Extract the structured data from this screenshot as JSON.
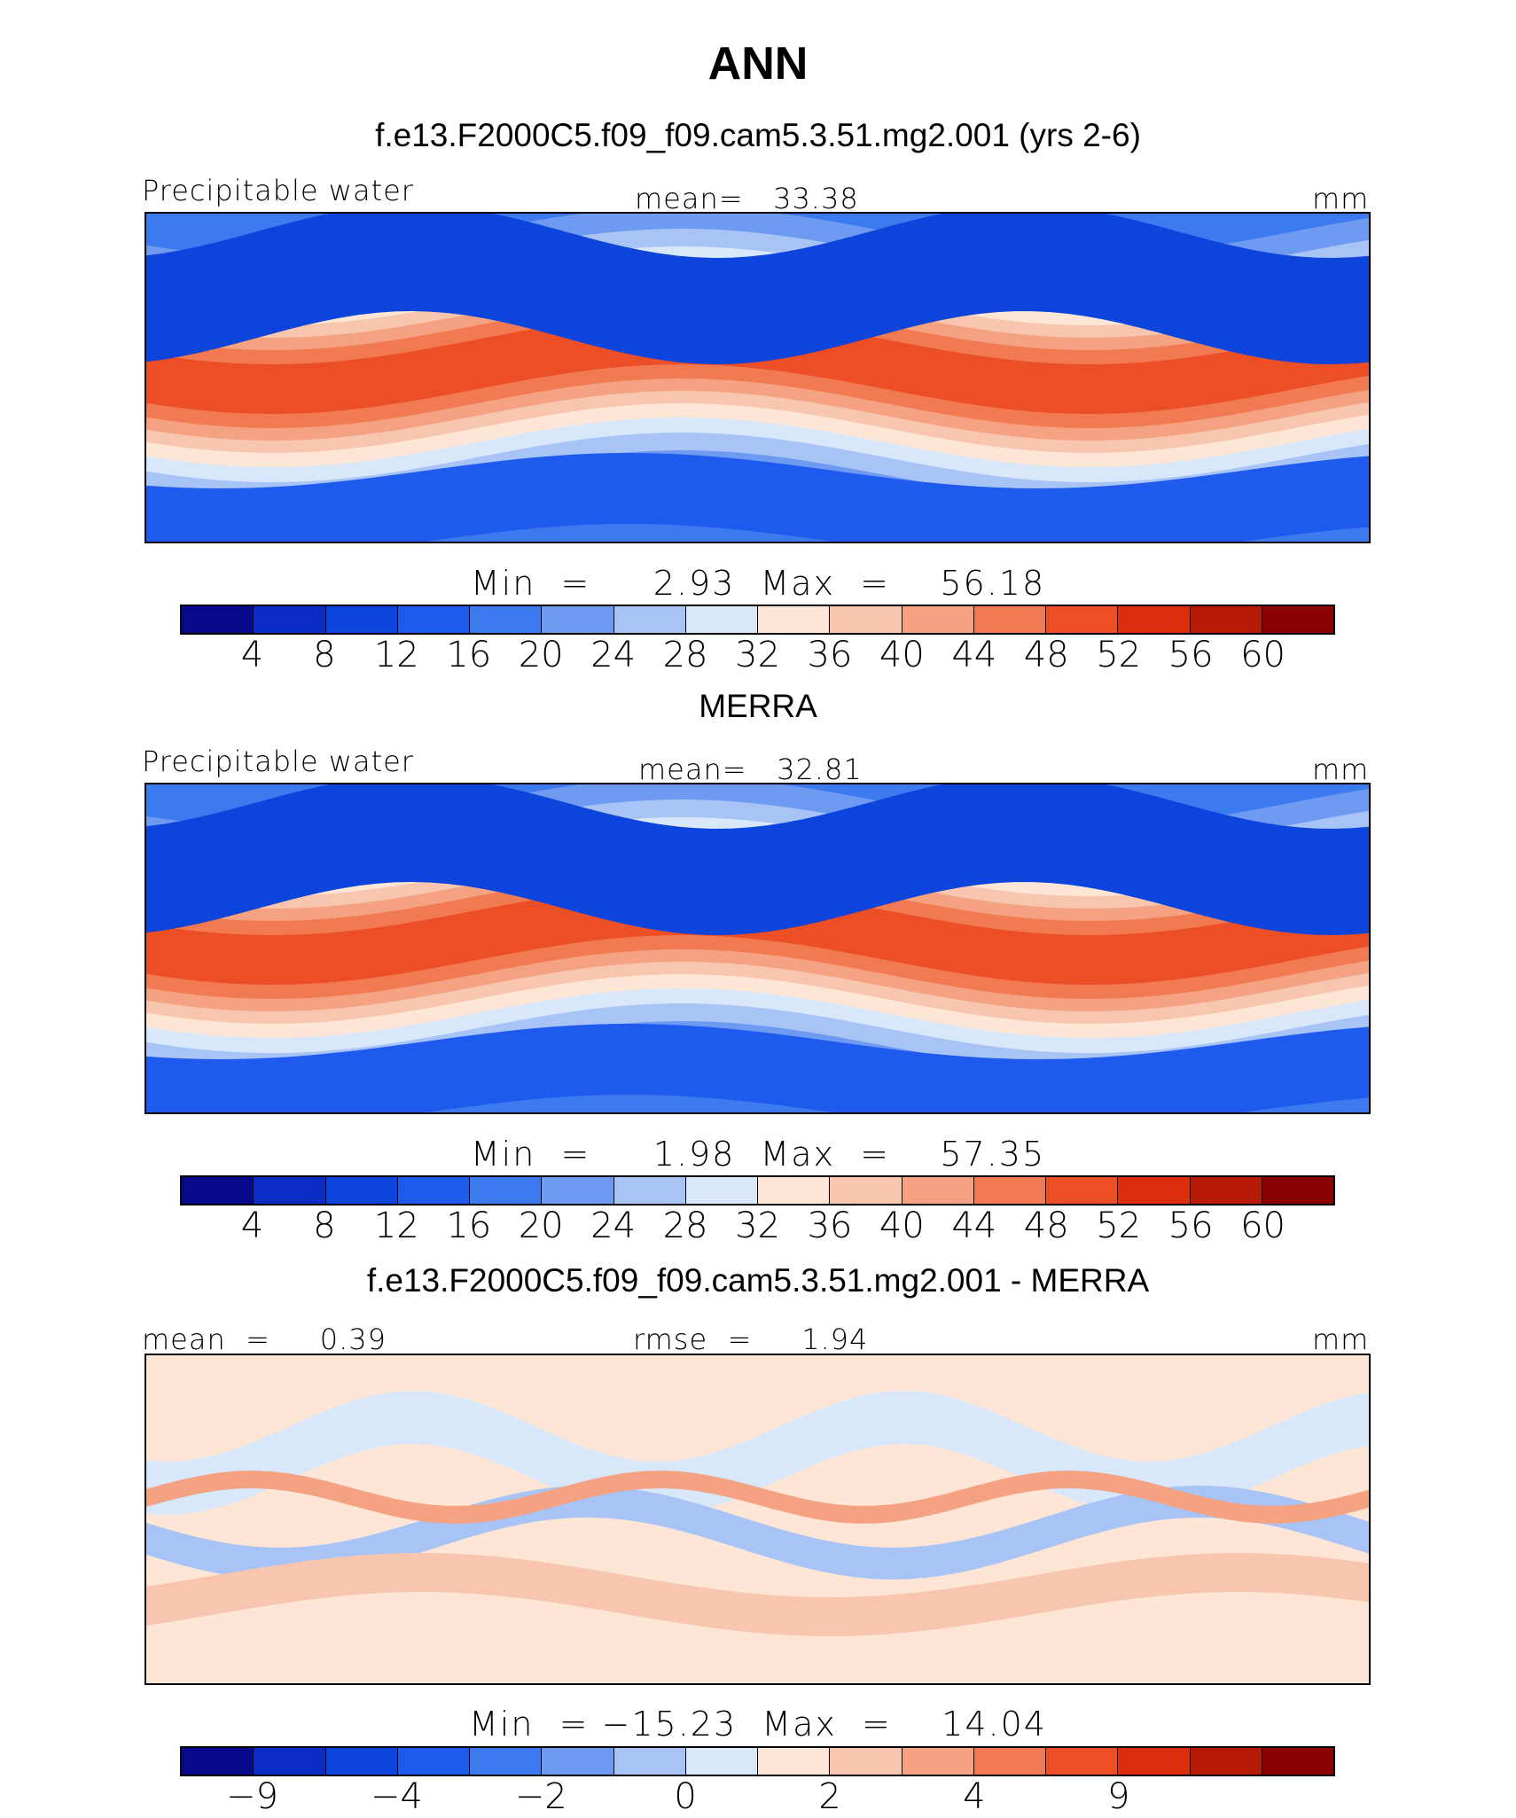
{
  "header": {
    "title": "ANN"
  },
  "colors": {
    "abs_scale": [
      "#08088c",
      "#0a2cc4",
      "#0c44dc",
      "#1e5aee",
      "#3c7aef",
      "#6e9af2",
      "#a8c4f6",
      "#d8e8fa",
      "#fde6d6",
      "#f8c6ae",
      "#f4a282",
      "#f27a52",
      "#ec4e26",
      "#dc2e0c",
      "#b81a08",
      "#8a0404"
    ],
    "diff_scale": [
      "#08088c",
      "#0a2cc4",
      "#0c44dc",
      "#1e5aee",
      "#3c7aef",
      "#6e9af2",
      "#a8c4f6",
      "#d8e8fa",
      "#fde6d6",
      "#f8c6ae",
      "#f4a282",
      "#f27a52",
      "#ec4e26",
      "#dc2e0c",
      "#b81a08",
      "#8a0404"
    ]
  },
  "chart_data": [
    {
      "type": "heatmap",
      "title": "f.e13.F2000C5.f09_f09.cam5.3.51.mg2.001 (yrs 2-6)",
      "left_label": "Precipitable water",
      "center_label": "mean=   33.38",
      "units": "mm",
      "mean": 33.38,
      "min": 2.93,
      "max": 56.18,
      "stats_text": "Min  =     2.93  Max  =    56.18",
      "colorbar_ticks": [
        "4",
        "8",
        "12",
        "16",
        "20",
        "24",
        "28",
        "32",
        "36",
        "40",
        "44",
        "48",
        "52",
        "56",
        "60"
      ],
      "scale": "abs"
    },
    {
      "type": "heatmap",
      "title": "MERRA",
      "left_label": "Precipitable water",
      "center_label": "mean=   32.81",
      "units": "mm",
      "mean": 32.81,
      "min": 1.98,
      "max": 57.35,
      "stats_text": "Min  =     1.98  Max  =    57.35",
      "colorbar_ticks": [
        "4",
        "8",
        "12",
        "16",
        "20",
        "24",
        "28",
        "32",
        "36",
        "40",
        "44",
        "48",
        "52",
        "56",
        "60"
      ],
      "scale": "abs"
    },
    {
      "type": "heatmap",
      "title": "f.e13.F2000C5.f09_f09.cam5.3.51.mg2.001 - MERRA",
      "left_label": "mean  =     0.39",
      "center_label": "rmse  =     1.94",
      "units": "mm",
      "mean": 0.39,
      "rmse": 1.94,
      "min": -15.23,
      "max": 14.04,
      "stats_text": "Min  = −15.23  Max  =    14.04",
      "colorbar_ticks": [
        "−9",
        "",
        "−4",
        "",
        "−2",
        "",
        "0",
        "",
        "2",
        "",
        "4",
        "",
        "9",
        ""
      ],
      "colorbar_tick_labels_shown": [
        "−9",
        "−4",
        "−2",
        "0",
        "2",
        "4",
        "9"
      ],
      "scale": "diff"
    }
  ]
}
